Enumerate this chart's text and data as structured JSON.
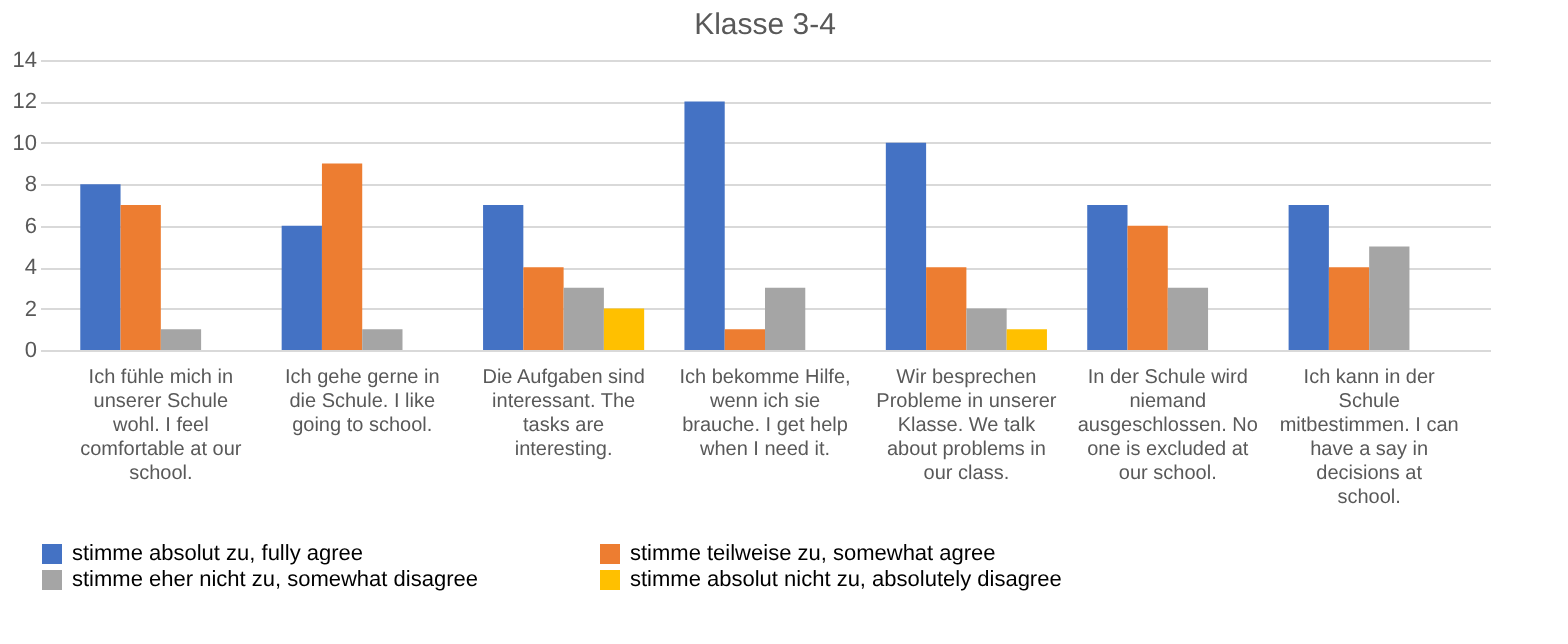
{
  "chart_data": {
    "type": "bar",
    "title": "Klasse 3-4",
    "categories": [
      "Ich fühle mich in unserer Schule wohl. I feel comfortable at our school.",
      "Ich gehe gerne in die Schule. I like going to school.",
      "Die Aufgaben sind interessant. The tasks are interesting.",
      "Ich bekomme Hilfe, wenn ich sie brauche. I get help when I need it.",
      "Wir besprechen Probleme in unserer Klasse. We talk about problems in our class.",
      "In der Schule wird niemand ausgeschlossen. No one is excluded at our school.",
      "Ich kann in der Schule mitbestimmen. I can have a say in decisions at school."
    ],
    "series": [
      {
        "name": "stimme absolut zu, fully agree",
        "color": "#4472c4",
        "values": [
          8,
          6,
          7,
          12,
          10,
          7,
          7
        ]
      },
      {
        "name": "stimme teilweise zu, somewhat agree",
        "color": "#ed7d31",
        "values": [
          7,
          9,
          4,
          1,
          4,
          6,
          4
        ]
      },
      {
        "name": "stimme eher nicht zu, somewhat disagree",
        "color": "#a5a5a5",
        "values": [
          1,
          1,
          3,
          3,
          2,
          3,
          5
        ]
      },
      {
        "name": "stimme absolut nicht zu, absolutely disagree",
        "color": "#ffc000",
        "values": [
          0,
          0,
          2,
          0,
          1,
          0,
          0
        ]
      }
    ],
    "ylim": [
      0,
      14
    ],
    "yticks": [
      0,
      2,
      4,
      6,
      8,
      10,
      12,
      14
    ],
    "grid": "y",
    "legend": "bottom"
  }
}
